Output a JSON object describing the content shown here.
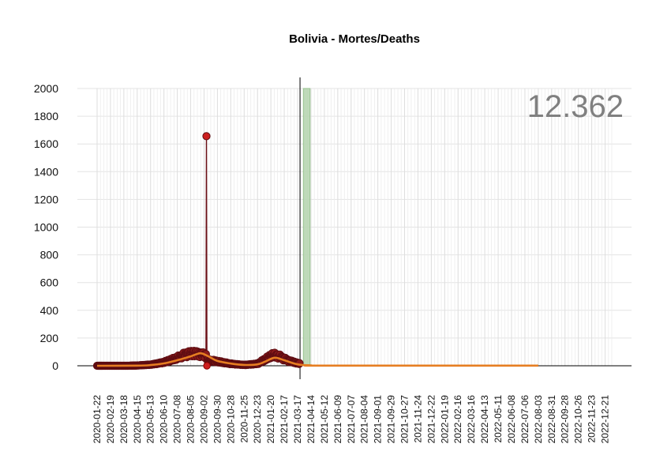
{
  "chart_data": {
    "type": "line",
    "title": "Bolivia - Mortes/Deaths",
    "total_label": "12.362",
    "xlabel": "",
    "ylabel": "",
    "ylim": [
      0,
      2000
    ],
    "yticks": [
      0,
      200,
      400,
      600,
      800,
      1000,
      1200,
      1400,
      1600,
      1800,
      2000
    ],
    "x_range": [
      "2020-01-22",
      "2023-01-04"
    ],
    "x_tick_labels": [
      "2020-01-22",
      "2020-02-19",
      "2020-03-18",
      "2020-04-15",
      "2020-05-13",
      "2020-06-10",
      "2020-07-08",
      "2020-08-05",
      "2020-09-02",
      "2020-09-30",
      "2020-10-28",
      "2020-11-25",
      "2020-12-23",
      "2021-01-20",
      "2021-02-17",
      "2021-03-17",
      "2021-04-14",
      "2021-05-12",
      "2021-06-09",
      "2021-07-07",
      "2021-08-04",
      "2021-09-01",
      "2021-09-29",
      "2021-10-27",
      "2021-11-24",
      "2021-12-22",
      "2022-01-19",
      "2022-02-16",
      "2022-03-16",
      "2022-04-13",
      "2022-05-11",
      "2022-06-08",
      "2022-07-06",
      "2022-08-03",
      "2022-08-31",
      "2022-09-28",
      "2022-10-26",
      "2022-11-23",
      "2022-12-21"
    ],
    "vertical_line_date": "2021-03-22",
    "highlight_band": {
      "from": "2021-03-29",
      "to": "2021-04-12",
      "value": 2000,
      "color": "#b9d6b3"
    },
    "colors": {
      "daily": "#6b0f16",
      "daily_points": "#5e0d12",
      "daily_points_fill": "#8b1a1a",
      "smooth": "#e67e22",
      "spike": "#cc1f1f"
    },
    "daily_series": {
      "name": "",
      "start_date": "2020-01-22",
      "end_date": "2021-03-21",
      "key_points": [
        [
          "2020-01-22",
          0
        ],
        [
          "2020-03-25",
          0
        ],
        [
          "2020-04-15",
          2
        ],
        [
          "2020-05-13",
          8
        ],
        [
          "2020-06-10",
          25
        ],
        [
          "2020-07-08",
          55
        ],
        [
          "2020-07-25",
          80
        ],
        [
          "2020-08-10",
          92
        ],
        [
          "2020-08-25",
          85
        ],
        [
          "2020-09-06",
          75
        ],
        [
          "2020-09-10",
          40
        ],
        [
          "2020-09-30",
          30
        ],
        [
          "2020-10-28",
          14
        ],
        [
          "2020-11-25",
          6
        ],
        [
          "2020-12-23",
          14
        ],
        [
          "2021-01-08",
          45
        ],
        [
          "2021-01-25",
          78
        ],
        [
          "2021-02-08",
          65
        ],
        [
          "2021-02-25",
          38
        ],
        [
          "2021-03-21",
          15
        ]
      ],
      "spike": {
        "date": "2020-09-07",
        "value": 1656
      },
      "dip": {
        "date": "2020-09-08",
        "value": 0
      }
    },
    "smoothed_series": {
      "name": "",
      "key_points": [
        [
          "2020-01-22",
          0
        ],
        [
          "2020-04-15",
          1
        ],
        [
          "2020-05-13",
          5
        ],
        [
          "2020-06-10",
          17
        ],
        [
          "2020-07-08",
          40
        ],
        [
          "2020-08-05",
          68
        ],
        [
          "2020-08-25",
          90
        ],
        [
          "2020-09-10",
          70
        ],
        [
          "2020-09-30",
          35
        ],
        [
          "2020-10-28",
          16
        ],
        [
          "2020-11-25",
          6
        ],
        [
          "2020-12-23",
          10
        ],
        [
          "2021-01-08",
          30
        ],
        [
          "2021-01-28",
          58
        ],
        [
          "2021-02-17",
          40
        ],
        [
          "2021-03-17",
          10
        ],
        [
          "2021-04-14",
          3
        ],
        [
          "2021-05-12",
          1
        ],
        [
          "2022-08-03",
          1
        ]
      ]
    }
  }
}
